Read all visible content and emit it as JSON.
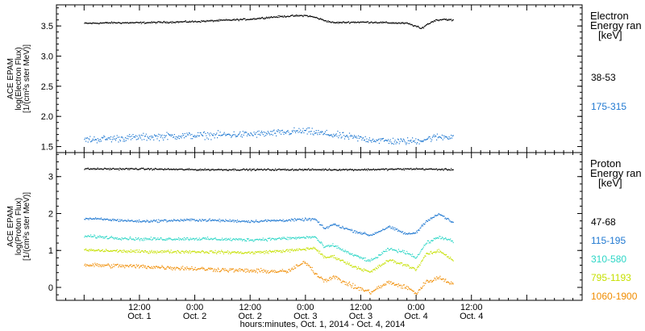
{
  "chart_data": {
    "type": "scatter",
    "x_axis": {
      "title": "hours:minutes, Oct.  1, 2014 - Oct.  4, 2014",
      "range_hours": [
        -6,
        108
      ],
      "ticks": [
        {
          "hours": 12,
          "time": "12:00",
          "date": "Oct. 1"
        },
        {
          "hours": 24,
          "time": "0:00",
          "date": "Oct. 2"
        },
        {
          "hours": 36,
          "time": "12:00",
          "date": "Oct. 2"
        },
        {
          "hours": 48,
          "time": "0:00",
          "date": "Oct. 3"
        },
        {
          "hours": 60,
          "time": "12:00",
          "date": "Oct. 3"
        },
        {
          "hours": 72,
          "time": "0:00",
          "date": "Oct. 4"
        },
        {
          "hours": 84,
          "time": "12:00",
          "date": "Oct. 4"
        }
      ]
    },
    "panels": [
      {
        "id": "electron",
        "ylabel_lines": [
          "ACE EPAM",
          "log(Electron Flux)",
          "[1/(cm²s ster MeV)]"
        ],
        "ylim": [
          1.4,
          3.85
        ],
        "yticks": [
          "1.5",
          "2.0",
          "2.5",
          "3.0",
          "3.5"
        ],
        "ytick_values": [
          1.5,
          2.0,
          2.5,
          3.0,
          3.5
        ],
        "legend_title": [
          "Electron",
          "Energy ran",
          "[keV]"
        ],
        "series": [
          {
            "name": "38-53",
            "color": "#000000",
            "noise": 0.012,
            "points": [
              [
                0,
                3.55
              ],
              [
                6,
                3.56
              ],
              [
                12,
                3.56
              ],
              [
                18,
                3.57
              ],
              [
                24,
                3.58
              ],
              [
                30,
                3.6
              ],
              [
                36,
                3.62
              ],
              [
                40,
                3.65
              ],
              [
                44,
                3.67
              ],
              [
                48,
                3.68
              ],
              [
                50,
                3.65
              ],
              [
                52,
                3.6
              ],
              [
                54,
                3.56
              ],
              [
                58,
                3.57
              ],
              [
                62,
                3.57
              ],
              [
                66,
                3.56
              ],
              [
                70,
                3.55
              ],
              [
                72,
                3.5
              ],
              [
                73,
                3.46
              ],
              [
                74,
                3.52
              ],
              [
                76,
                3.6
              ],
              [
                78,
                3.62
              ],
              [
                80,
                3.6
              ]
            ]
          },
          {
            "name": "175-315",
            "color": "#1f78d1",
            "noise": 0.05,
            "points": [
              [
                0,
                1.62
              ],
              [
                6,
                1.64
              ],
              [
                12,
                1.66
              ],
              [
                18,
                1.68
              ],
              [
                24,
                1.69
              ],
              [
                30,
                1.7
              ],
              [
                36,
                1.71
              ],
              [
                42,
                1.73
              ],
              [
                46,
                1.76
              ],
              [
                48,
                1.76
              ],
              [
                52,
                1.72
              ],
              [
                56,
                1.68
              ],
              [
                60,
                1.64
              ],
              [
                64,
                1.61
              ],
              [
                68,
                1.59
              ],
              [
                72,
                1.6
              ],
              [
                76,
                1.66
              ],
              [
                80,
                1.68
              ]
            ]
          }
        ]
      },
      {
        "id": "proton",
        "ylabel_lines": [
          "ACE EPAM",
          "log(Proton Flux)",
          "[1/(cm²s ster MeV)]"
        ],
        "ylim": [
          -0.35,
          3.65
        ],
        "yticks": [
          "0",
          "1",
          "2",
          "3"
        ],
        "ytick_values": [
          0,
          1,
          2,
          3
        ],
        "legend_title": [
          "Proton",
          "Energy ran",
          "[keV]"
        ],
        "series": [
          {
            "name": "47-68",
            "color": "#000000",
            "noise": 0.02,
            "points": [
              [
                0,
                3.22
              ],
              [
                12,
                3.22
              ],
              [
                24,
                3.2
              ],
              [
                36,
                3.2
              ],
              [
                48,
                3.2
              ],
              [
                60,
                3.2
              ],
              [
                72,
                3.22
              ],
              [
                80,
                3.2
              ]
            ]
          },
          {
            "name": "115-195",
            "color": "#1f78d1",
            "noise": 0.03,
            "points": [
              [
                0,
                1.88
              ],
              [
                12,
                1.8
              ],
              [
                24,
                1.84
              ],
              [
                36,
                1.8
              ],
              [
                46,
                1.84
              ],
              [
                50,
                1.86
              ],
              [
                52,
                1.6
              ],
              [
                54,
                1.72
              ],
              [
                58,
                1.55
              ],
              [
                62,
                1.42
              ],
              [
                66,
                1.65
              ],
              [
                70,
                1.45
              ],
              [
                72,
                1.5
              ],
              [
                74,
                1.8
              ],
              [
                77,
                2.0
              ],
              [
                80,
                1.75
              ]
            ]
          },
          {
            "name": "310-580",
            "color": "#2cd6c6",
            "noise": 0.035,
            "points": [
              [
                0,
                1.4
              ],
              [
                12,
                1.32
              ],
              [
                24,
                1.33
              ],
              [
                36,
                1.3
              ],
              [
                46,
                1.35
              ],
              [
                50,
                1.38
              ],
              [
                52,
                1.1
              ],
              [
                54,
                1.15
              ],
              [
                58,
                0.9
              ],
              [
                62,
                0.72
              ],
              [
                66,
                1.05
              ],
              [
                70,
                0.95
              ],
              [
                72,
                0.82
              ],
              [
                74,
                1.2
              ],
              [
                77,
                1.38
              ],
              [
                80,
                1.25
              ]
            ]
          },
          {
            "name": "795-1193",
            "color": "#c6e000",
            "noise": 0.035,
            "points": [
              [
                0,
                1.02
              ],
              [
                12,
                0.98
              ],
              [
                24,
                0.98
              ],
              [
                36,
                0.95
              ],
              [
                46,
                1.02
              ],
              [
                50,
                1.08
              ],
              [
                52,
                0.82
              ],
              [
                54,
                0.85
              ],
              [
                58,
                0.6
              ],
              [
                62,
                0.42
              ],
              [
                66,
                0.75
              ],
              [
                70,
                0.6
              ],
              [
                72,
                0.5
              ],
              [
                74,
                0.9
              ],
              [
                77,
                1.0
              ],
              [
                80,
                0.75
              ]
            ]
          },
          {
            "name": "1060-1900",
            "color": "#f08c00",
            "noise": 0.05,
            "points": [
              [
                0,
                0.62
              ],
              [
                12,
                0.58
              ],
              [
                24,
                0.52
              ],
              [
                36,
                0.46
              ],
              [
                44,
                0.44
              ],
              [
                48,
                0.7
              ],
              [
                50,
                0.4
              ],
              [
                52,
                0.2
              ],
              [
                54,
                0.3
              ],
              [
                58,
                0.05
              ],
              [
                62,
                -0.12
              ],
              [
                66,
                0.15
              ],
              [
                70,
                0.0
              ],
              [
                72,
                -0.15
              ],
              [
                74,
                0.15
              ],
              [
                77,
                0.28
              ],
              [
                80,
                0.1
              ]
            ]
          }
        ]
      }
    ]
  }
}
